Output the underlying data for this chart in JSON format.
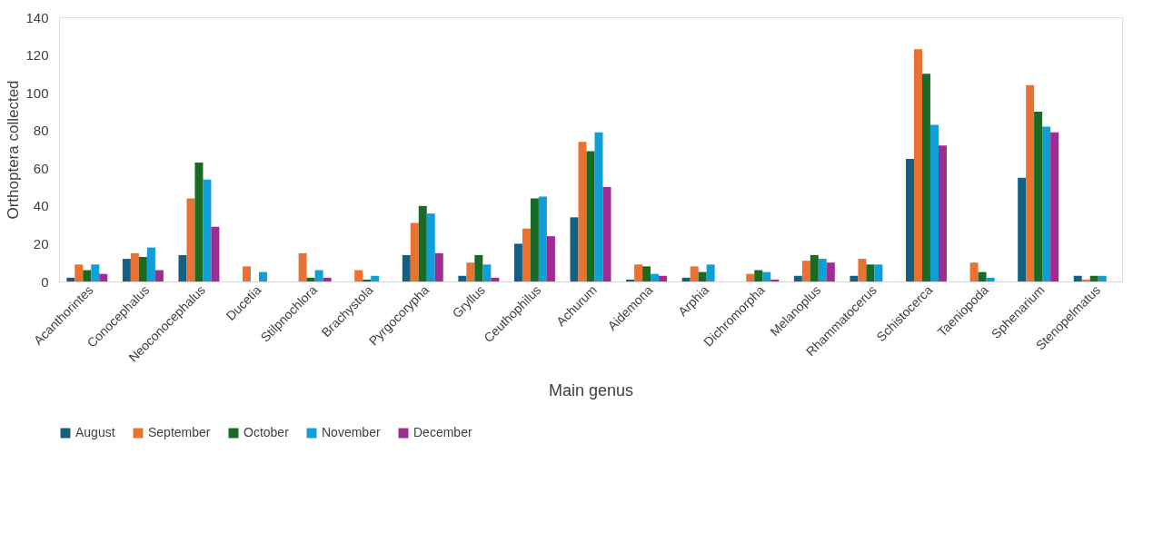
{
  "chart_data": {
    "type": "bar",
    "xlabel": "Main genus",
    "ylabel": "Orthoptera collected",
    "categories": [
      "Acanthorintes",
      "Conocephalus",
      "Neoconocephalus",
      "Ducetia",
      "Stilpnochlora",
      "Brachystola",
      "Pyrgocorypha",
      "Gryllus",
      "Ceuthophilus",
      "Achurum",
      "Aidemona",
      "Arphia",
      "Dichromorpha",
      "Melanoplus",
      "Rhammatocerus",
      "Schistocerca",
      "Taeniopoda",
      "Sphenarium",
      "Stenopelmatus"
    ],
    "series": [
      {
        "name": "August",
        "color": "#156082",
        "values": [
          2,
          12,
          14,
          0,
          0,
          0,
          14,
          3,
          20,
          34,
          1,
          2,
          0,
          3,
          3,
          65,
          0,
          55,
          3
        ]
      },
      {
        "name": "September",
        "color": "#e97132",
        "values": [
          9,
          15,
          44,
          8,
          15,
          6,
          31,
          10,
          28,
          74,
          9,
          8,
          4,
          11,
          12,
          123,
          10,
          104,
          1
        ]
      },
      {
        "name": "October",
        "color": "#196b24",
        "values": [
          6,
          13,
          63,
          0,
          2,
          1,
          40,
          14,
          44,
          69,
          8,
          5,
          6,
          14,
          9,
          110,
          5,
          90,
          3
        ]
      },
      {
        "name": "November",
        "color": "#0f9ed5",
        "values": [
          9,
          18,
          54,
          5,
          6,
          3,
          36,
          9,
          45,
          79,
          4,
          9,
          5,
          12,
          9,
          83,
          2,
          82,
          3
        ]
      },
      {
        "name": "December",
        "color": "#a02b93",
        "values": [
          4,
          6,
          29,
          0,
          2,
          0,
          15,
          2,
          24,
          50,
          3,
          0,
          1,
          10,
          0,
          72,
          0,
          79,
          0
        ]
      }
    ],
    "ylim": [
      0,
      140
    ],
    "yticks": [
      0,
      20,
      40,
      60,
      80,
      100,
      120,
      140
    ],
    "grid": false,
    "legend": "bottom"
  }
}
